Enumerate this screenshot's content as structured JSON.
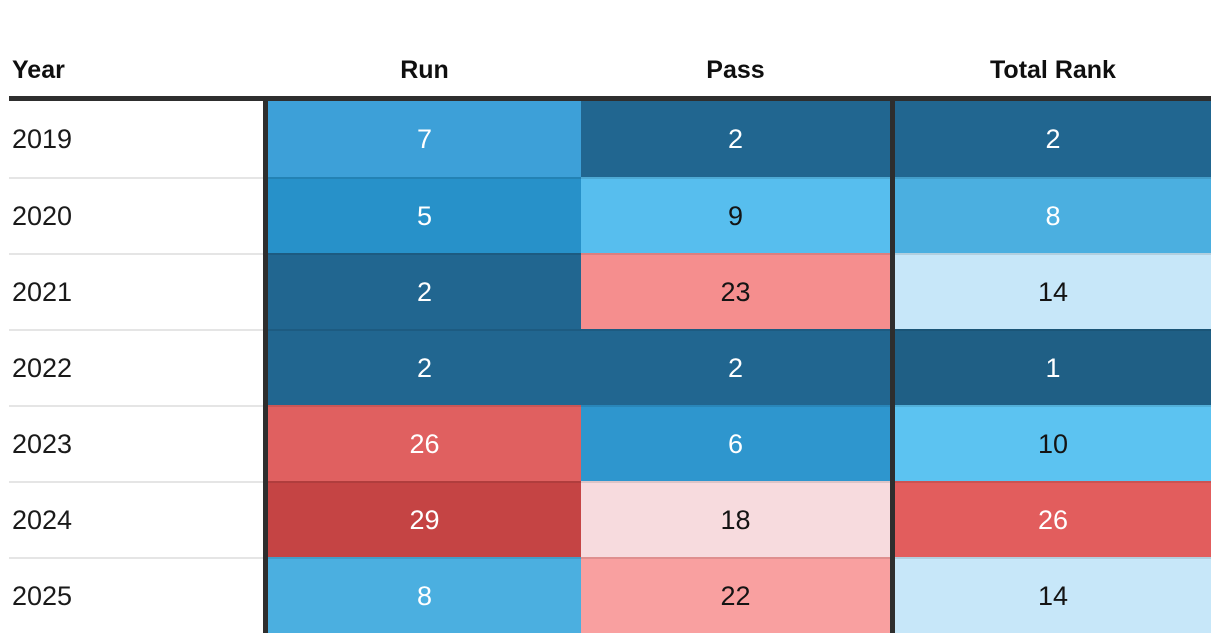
{
  "chart_data": {
    "type": "heatmap",
    "title": "",
    "columns": [
      "Year",
      "Run",
      "Pass",
      "Total Rank"
    ],
    "rows": [
      {
        "year": "2019",
        "cells": [
          {
            "col": "run",
            "value": "7",
            "bg": "#3DA0D8",
            "fg": "#FFFFFF"
          },
          {
            "col": "pass",
            "value": "2",
            "bg": "#216690",
            "fg": "#FFFFFF"
          },
          {
            "col": "total_rank",
            "value": "2",
            "bg": "#216690",
            "fg": "#FFFFFF"
          }
        ]
      },
      {
        "year": "2020",
        "cells": [
          {
            "col": "run",
            "value": "5",
            "bg": "#2791C9",
            "fg": "#FFFFFF"
          },
          {
            "col": "pass",
            "value": "9",
            "bg": "#57BEEE",
            "fg": "#141414"
          },
          {
            "col": "total_rank",
            "value": "8",
            "bg": "#4BAFE0",
            "fg": "#FFFFFF"
          }
        ]
      },
      {
        "year": "2021",
        "cells": [
          {
            "col": "run",
            "value": "2",
            "bg": "#216690",
            "fg": "#FFFFFF"
          },
          {
            "col": "pass",
            "value": "23",
            "bg": "#F58E8E",
            "fg": "#141414"
          },
          {
            "col": "total_rank",
            "value": "14",
            "bg": "#C7E7F9",
            "fg": "#141414"
          }
        ]
      },
      {
        "year": "2022",
        "cells": [
          {
            "col": "run",
            "value": "2",
            "bg": "#216690",
            "fg": "#FFFFFF"
          },
          {
            "col": "pass",
            "value": "2",
            "bg": "#216690",
            "fg": "#FFFFFF"
          },
          {
            "col": "total_rank",
            "value": "1",
            "bg": "#1F5F85",
            "fg": "#FFFFFF"
          }
        ]
      },
      {
        "year": "2023",
        "cells": [
          {
            "col": "run",
            "value": "26",
            "bg": "#E06060",
            "fg": "#FFFFFF"
          },
          {
            "col": "pass",
            "value": "6",
            "bg": "#2E96CE",
            "fg": "#FFFFFF"
          },
          {
            "col": "total_rank",
            "value": "10",
            "bg": "#5CC3F1",
            "fg": "#141414"
          }
        ]
      },
      {
        "year": "2024",
        "cells": [
          {
            "col": "run",
            "value": "29",
            "bg": "#C54444",
            "fg": "#FFFFFF"
          },
          {
            "col": "pass",
            "value": "18",
            "bg": "#F7DBDE",
            "fg": "#141414"
          },
          {
            "col": "total_rank",
            "value": "26",
            "bg": "#E25D5D",
            "fg": "#FFFFFF"
          }
        ]
      },
      {
        "year": "2025",
        "cells": [
          {
            "col": "run",
            "value": "8",
            "bg": "#4BAFE0",
            "fg": "#FFFFFF"
          },
          {
            "col": "pass",
            "value": "22",
            "bg": "#F9A0A0",
            "fg": "#141414"
          },
          {
            "col": "total_rank",
            "value": "14",
            "bg": "#C7E7F9",
            "fg": "#141414"
          }
        ]
      }
    ],
    "value_domain": [
      1,
      32
    ],
    "legend": "none",
    "palette_note": "diverging: dark blue = best rank (1), dark red = worst rank"
  },
  "colors": {
    "header_rule": "#2e2e2e",
    "column_separator": "#2e2e2e",
    "row_separator": "rgba(0,0,0,0.10)",
    "background": "#ffffff"
  }
}
